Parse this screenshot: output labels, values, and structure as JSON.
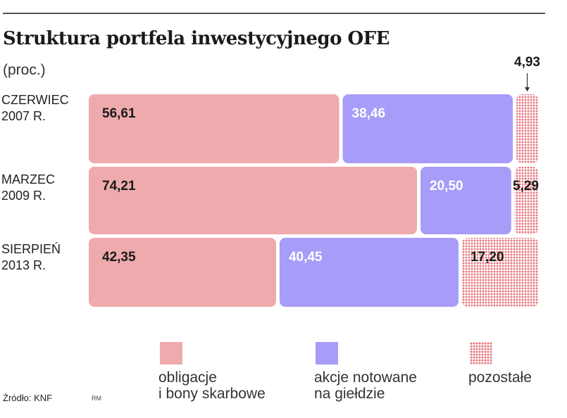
{
  "header": {
    "title": "Struktura portfela inwestycyjnego OFE",
    "subtitle": "(proc.)"
  },
  "rows": [
    {
      "label_line1": "CZERWIEC",
      "label_line2": "2007 R."
    },
    {
      "label_line1": "MARZEC",
      "label_line2": "2009 R."
    },
    {
      "label_line1": "SIERPIEŃ",
      "label_line2": "2013 R."
    }
  ],
  "legend": [
    {
      "line1": "obligacje",
      "line2": "i bony skarbowe"
    },
    {
      "line1": "akcje notowane",
      "line2": "na giełdzie"
    },
    {
      "line1": "pozostałe",
      "line2": ""
    }
  ],
  "footer": {
    "source": "Źródło: KNF",
    "author": "RM"
  },
  "colors": {
    "bonds": "#eeaaad",
    "stocks": "#a79cf7",
    "other": "#e87a80",
    "rule": "#555555"
  },
  "chart_data": {
    "type": "bar",
    "stacked": true,
    "orientation": "horizontal",
    "categories": [
      "CZERWIEC 2007 R.",
      "MARZEC 2009 R.",
      "SIERPIEŃ 2013 R."
    ],
    "series": [
      {
        "name": "obligacje i bony skarbowe",
        "values": [
          56.61,
          74.21,
          42.35
        ],
        "labels": [
          "56,61",
          "74,21",
          "42,35"
        ]
      },
      {
        "name": "akcje notowane na giełdzie",
        "values": [
          38.46,
          20.5,
          40.45
        ],
        "labels": [
          "38,46",
          "20,50",
          "40,45"
        ]
      },
      {
        "name": "pozostałe",
        "values": [
          4.93,
          5.29,
          17.2
        ],
        "labels": [
          "4,93",
          "5,29",
          "17,20"
        ]
      }
    ],
    "title": "Struktura portfela inwestycyjnego OFE",
    "unit": "(proc.)",
    "xlim": [
      0,
      100
    ]
  }
}
